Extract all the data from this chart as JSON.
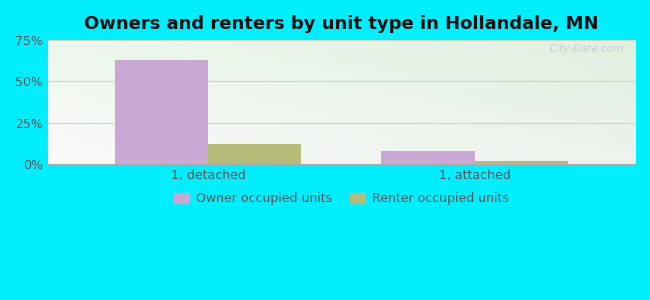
{
  "title": "Owners and renters by unit type in Hollandale, MN",
  "categories": [
    "1, detached",
    "1, attached"
  ],
  "owner_values": [
    63,
    8
  ],
  "renter_values": [
    12,
    2
  ],
  "owner_color": "#c9a8d4",
  "renter_color": "#b5bc7a",
  "ylim": [
    0,
    75
  ],
  "yticks": [
    0,
    25,
    50,
    75
  ],
  "yticklabels": [
    "0%",
    "25%",
    "50%",
    "75%"
  ],
  "bar_width": 0.35,
  "title_fontsize": 13,
  "watermark": "City-Data.com",
  "legend_labels": [
    "Owner occupied units",
    "Renter occupied units"
  ],
  "outer_bg": "#00eeff",
  "grid_color": "#e0e8d8"
}
